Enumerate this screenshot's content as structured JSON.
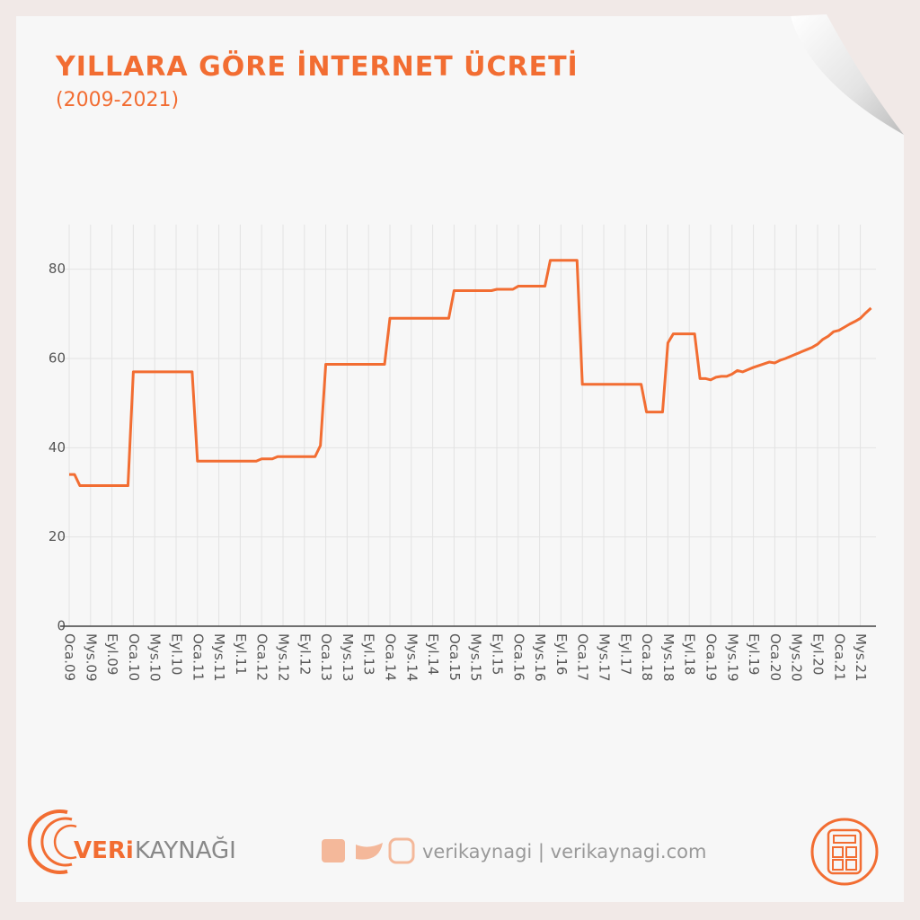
{
  "chart_data": {
    "type": "line",
    "title": "YILLARA GÖRE İNTERNET ÜCRETİ",
    "subtitle": "(2009-2021)",
    "categories": [
      "Oca.09",
      null,
      null,
      null,
      "Mys.09",
      null,
      null,
      null,
      "Eyl.09",
      null,
      null,
      null,
      "Oca.10",
      null,
      null,
      null,
      "Mys.10",
      null,
      null,
      null,
      "Eyl.10",
      null,
      null,
      null,
      "Oca.11",
      null,
      null,
      null,
      "Mys.11",
      null,
      null,
      null,
      "Eyl.11",
      null,
      null,
      null,
      "Oca.12",
      null,
      null,
      null,
      "Mys.12",
      null,
      null,
      null,
      "Eyl.12",
      null,
      null,
      null,
      "Oca.13",
      null,
      null,
      null,
      "Mys.13",
      null,
      null,
      null,
      "Eyl.13",
      null,
      null,
      null,
      "Oca.14",
      null,
      null,
      null,
      "Mys.14",
      null,
      null,
      null,
      "Eyl.14",
      null,
      null,
      null,
      "Oca.15",
      null,
      null,
      null,
      "Mys.15",
      null,
      null,
      null,
      "Eyl.15",
      null,
      null,
      null,
      "Oca.16",
      null,
      null,
      null,
      "Mys.16",
      null,
      null,
      null,
      "Eyl.16",
      null,
      null,
      null,
      "Oca.17",
      null,
      null,
      null,
      "Mys.17",
      null,
      null,
      null,
      "Eyl.17",
      null,
      null,
      null,
      "Oca.18",
      null,
      null,
      null,
      "Mys.18",
      null,
      null,
      null,
      "Eyl.18",
      null,
      null,
      null,
      "Oca.19",
      null,
      null,
      null,
      "Mys.19",
      null,
      null,
      null,
      "Eyl.19",
      null,
      null,
      null,
      "Oca.20",
      null,
      null,
      null,
      "Mys.20",
      null,
      null,
      null,
      "Eyl.20",
      null,
      null,
      null,
      "Oca.21",
      null,
      null,
      null,
      "Mys.21",
      null,
      null
    ],
    "values": [
      34,
      34,
      31.5,
      31.5,
      31.5,
      31.5,
      31.5,
      31.5,
      31.5,
      31.5,
      31.5,
      31.5,
      57,
      57,
      57,
      57,
      57,
      57,
      57,
      57,
      57,
      57,
      57,
      57,
      37,
      37,
      37,
      37,
      37,
      37,
      37,
      37,
      37,
      37,
      37,
      37,
      37.5,
      37.5,
      37.5,
      38,
      38,
      38,
      38,
      38,
      38,
      38,
      38,
      40.5,
      58.7,
      58.7,
      58.7,
      58.7,
      58.7,
      58.7,
      58.7,
      58.7,
      58.7,
      58.7,
      58.7,
      58.7,
      69,
      69,
      69,
      69,
      69,
      69,
      69,
      69,
      69,
      69,
      69,
      69,
      75.2,
      75.2,
      75.2,
      75.2,
      75.2,
      75.2,
      75.2,
      75.2,
      75.5,
      75.5,
      75.5,
      75.5,
      76.2,
      76.2,
      76.2,
      76.2,
      76.2,
      76.2,
      82,
      82,
      82,
      82,
      82,
      82,
      54.2,
      54.2,
      54.2,
      54.2,
      54.2,
      54.2,
      54.2,
      54.2,
      54.2,
      54.2,
      54.2,
      54.2,
      48,
      48,
      48,
      48,
      63.5,
      65.5,
      65.5,
      65.5,
      65.5,
      65.5,
      55.5,
      55.5,
      55.2,
      55.8,
      56,
      56,
      56.5,
      57.3,
      57,
      57.5,
      58,
      58.4,
      58.8,
      59.2,
      59,
      59.6,
      60,
      60.5,
      61,
      61.5,
      62,
      62.5,
      63.2,
      64.3,
      65,
      66,
      66.3,
      67,
      67.7,
      68.3,
      69,
      70.2,
      71.3
    ],
    "color": "#f26d32",
    "ylim": [
      0,
      90
    ],
    "yticks": [
      0,
      20,
      40,
      60,
      80
    ],
    "grid": true
  },
  "logo": {
    "strong": "VERi",
    "rest": "KAYNAĞI"
  },
  "footer": "verikaynagi | verikaynagi.com"
}
